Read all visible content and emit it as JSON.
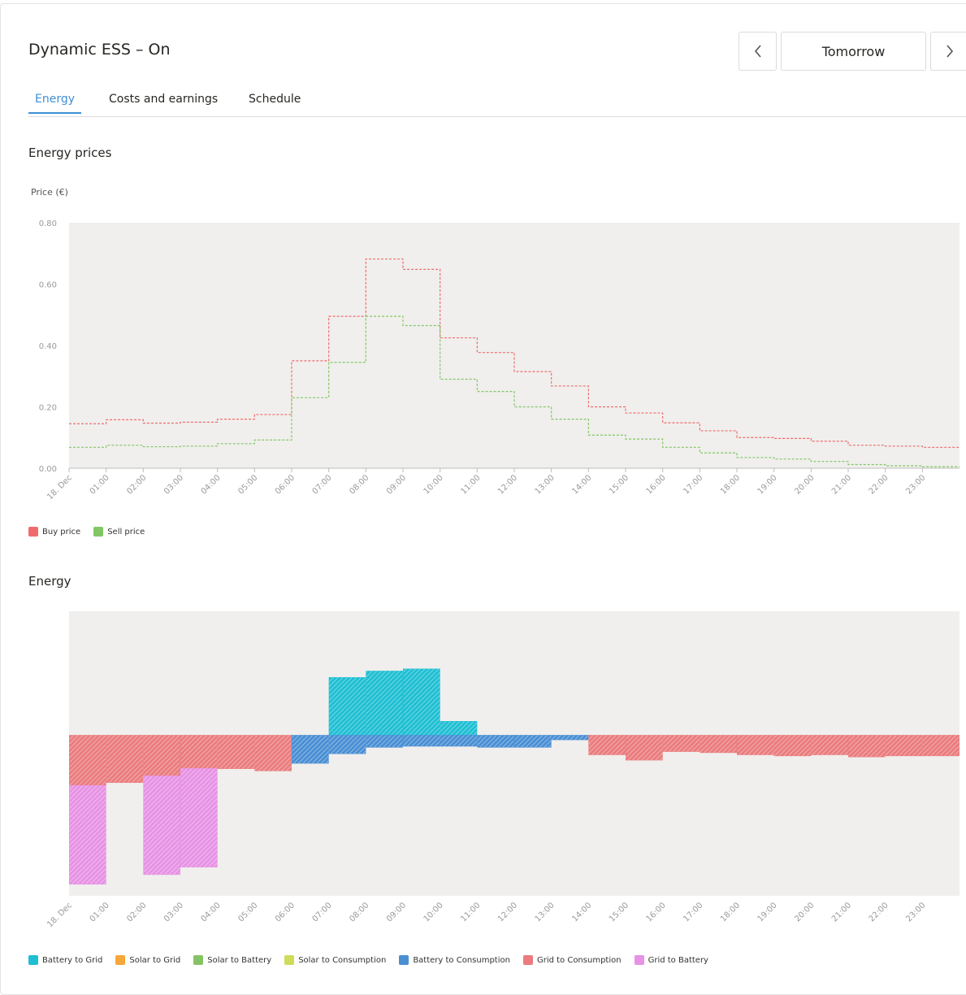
{
  "header": {
    "title": "Dynamic ESS – On",
    "day_label": "Tomorrow",
    "prev_icon": "chevron-left-icon",
    "next_icon": "chevron-right-icon"
  },
  "tabs": [
    {
      "label": "Energy",
      "active": true
    },
    {
      "label": "Costs and earnings",
      "active": false
    },
    {
      "label": "Schedule",
      "active": false
    }
  ],
  "prices_section": {
    "title": "Energy prices",
    "legend": [
      {
        "label": "Buy price",
        "color": "#ef6c6e"
      },
      {
        "label": "Sell price",
        "color": "#82c765"
      }
    ]
  },
  "energy_section": {
    "title": "Energy",
    "legend": [
      {
        "label": "Battery to Grid",
        "color": "#1fbfd3"
      },
      {
        "label": "Solar to Grid",
        "color": "#f7a739"
      },
      {
        "label": "Solar to Battery",
        "color": "#84c465"
      },
      {
        "label": "Solar to Consumption",
        "color": "#cfdb5a"
      },
      {
        "label": "Battery to Consumption",
        "color": "#4a8fd4"
      },
      {
        "label": "Grid to Consumption",
        "color": "#ea7c7e"
      },
      {
        "label": "Grid to Battery",
        "color": "#e792e4"
      }
    ]
  },
  "chart_data": [
    {
      "type": "line",
      "step": true,
      "ylabel": "Price (€)",
      "ylim": [
        0,
        0.8
      ],
      "yticks": [
        "0.00",
        "0.20",
        "0.40",
        "0.60",
        "0.80"
      ],
      "x": [
        "18. Dec",
        "01:00",
        "02:00",
        "03:00",
        "04:00",
        "05:00",
        "06:00",
        "07:00",
        "08:00",
        "09:00",
        "10:00",
        "11:00",
        "12:00",
        "13:00",
        "14:00",
        "15:00",
        "16:00",
        "17:00",
        "18:00",
        "19:00",
        "20:00",
        "21:00",
        "22:00",
        "23:00"
      ],
      "series": [
        {
          "name": "Buy price",
          "color": "#ef6c6e",
          "values": [
            0.145,
            0.158,
            0.147,
            0.15,
            0.16,
            0.175,
            0.35,
            0.495,
            0.682,
            0.648,
            0.425,
            0.377,
            0.315,
            0.268,
            0.2,
            0.18,
            0.148,
            0.122,
            0.1,
            0.097,
            0.088,
            0.075,
            0.072,
            0.068
          ]
        },
        {
          "name": "Sell price",
          "color": "#82c765",
          "values": [
            0.068,
            0.075,
            0.07,
            0.072,
            0.08,
            0.092,
            0.23,
            0.345,
            0.495,
            0.465,
            0.29,
            0.25,
            0.2,
            0.16,
            0.108,
            0.095,
            0.068,
            0.05,
            0.035,
            0.03,
            0.022,
            0.012,
            0.008,
            0.005
          ]
        }
      ]
    },
    {
      "type": "bar",
      "stacked": true,
      "ylim": [
        -0.75,
        0.58
      ],
      "categories": [
        "18. Dec",
        "01:00",
        "02:00",
        "03:00",
        "04:00",
        "05:00",
        "06:00",
        "07:00",
        "08:00",
        "09:00",
        "10:00",
        "11:00",
        "12:00",
        "13:00",
        "14:00",
        "15:00",
        "16:00",
        "17:00",
        "18:00",
        "19:00",
        "20:00",
        "21:00",
        "22:00",
        "23:00"
      ],
      "series": [
        {
          "name": "Battery to Grid",
          "color": "#1fbfd3",
          "values": [
            0,
            0,
            0,
            0,
            0,
            0,
            0,
            0.27,
            0.3,
            0.31,
            0.065,
            0,
            0,
            0,
            0,
            0,
            0,
            0,
            0,
            0,
            0,
            0,
            0,
            0
          ]
        },
        {
          "name": "Battery to Consumption",
          "color": "#4a8fd4",
          "values": [
            0,
            0,
            0,
            0,
            0,
            0,
            -0.13,
            -0.085,
            -0.055,
            -0.05,
            -0.05,
            -0.055,
            -0.055,
            -0.02,
            0,
            0,
            0,
            0,
            0,
            0,
            0,
            0,
            0,
            0
          ]
        },
        {
          "name": "Grid to Consumption",
          "color": "#ea7c7e",
          "values": [
            -0.235,
            -0.22,
            -0.19,
            -0.155,
            -0.155,
            -0.165,
            0,
            0,
            0,
            0,
            0,
            0,
            0,
            0,
            -0.09,
            -0.115,
            -0.075,
            -0.08,
            -0.09,
            -0.095,
            -0.09,
            -0.1,
            -0.095,
            -0.095
          ]
        },
        {
          "name": "Grid to Battery",
          "color": "#e792e4",
          "values": [
            -0.46,
            0,
            -0.46,
            -0.46,
            0,
            0,
            0,
            0,
            0,
            0,
            0,
            0,
            0,
            0,
            0,
            0,
            0,
            0,
            0,
            0,
            0,
            0,
            0,
            0
          ]
        }
      ]
    }
  ]
}
